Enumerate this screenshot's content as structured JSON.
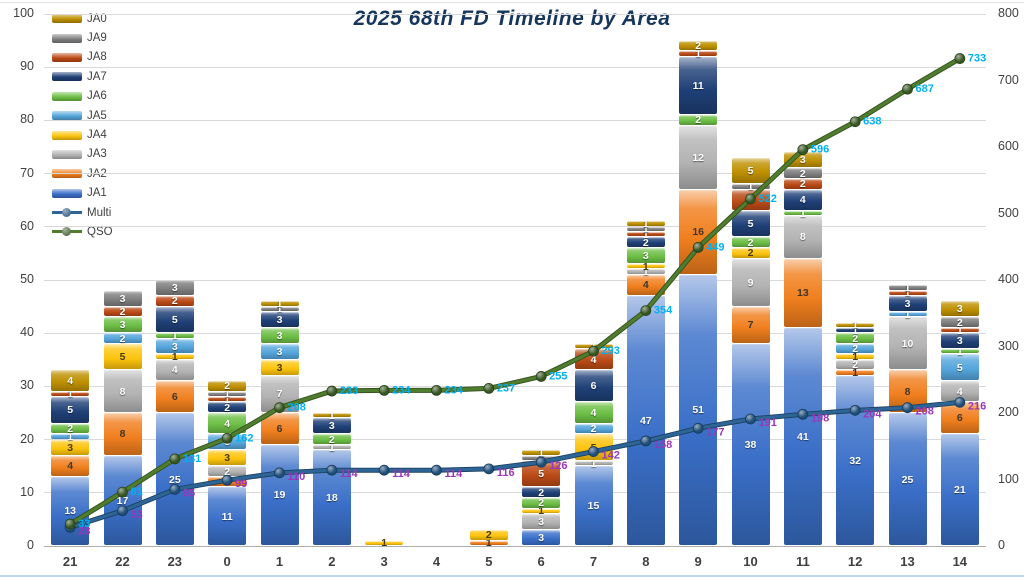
{
  "title": "2025 68th FD Timeline by Area",
  "chart_data": {
    "type": "bar",
    "subtype": "stacked-columns-with-cumulative-lines",
    "categories": [
      "21",
      "22",
      "23",
      "0",
      "1",
      "2",
      "3",
      "4",
      "5",
      "6",
      "7",
      "8",
      "9",
      "10",
      "11",
      "12",
      "13",
      "14"
    ],
    "series": [
      {
        "name": "JA1",
        "color": "#3a6fc8",
        "label_color": "#ffffff",
        "values": [
          13,
          17,
          25,
          11,
          19,
          18,
          0,
          0,
          0,
          3,
          15,
          47,
          51,
          38,
          41,
          32,
          25,
          21
        ]
      },
      {
        "name": "JA2",
        "color": "#f07f1e",
        "label_color": "#40362a",
        "values": [
          4,
          8,
          6,
          2,
          6,
          0,
          0,
          0,
          1,
          0,
          0,
          4,
          16,
          7,
          13,
          1,
          8,
          6
        ]
      },
      {
        "name": "JA3",
        "color": "#b3b3b3",
        "label_color": "#ffffff",
        "values": [
          0,
          8,
          4,
          2,
          7,
          1,
          0,
          0,
          0,
          3,
          1,
          1,
          12,
          9,
          8,
          2,
          10,
          4
        ]
      },
      {
        "name": "JA4",
        "color": "#fdc40d",
        "label_color": "#4a3c0a",
        "values": [
          3,
          5,
          1,
          3,
          3,
          0,
          1,
          0,
          2,
          1,
          5,
          1,
          0,
          2,
          0,
          1,
          0,
          0
        ]
      },
      {
        "name": "JA5",
        "color": "#55a6dc",
        "label_color": "#ffffff",
        "values": [
          1,
          2,
          3,
          3,
          3,
          0,
          0,
          0,
          0,
          0,
          2,
          0,
          0,
          0,
          0,
          2,
          1,
          5
        ]
      },
      {
        "name": "JA6",
        "color": "#6cbe45",
        "label_color": "#ffffff",
        "values": [
          2,
          3,
          1,
          4,
          3,
          2,
          0,
          0,
          0,
          2,
          4,
          3,
          2,
          2,
          1,
          2,
          0,
          1
        ]
      },
      {
        "name": "JA7",
        "color": "#1f4077",
        "label_color": "#ffffff",
        "values": [
          5,
          0,
          5,
          2,
          3,
          3,
          0,
          0,
          0,
          2,
          6,
          2,
          11,
          5,
          4,
          1,
          3,
          3
        ]
      },
      {
        "name": "JA8",
        "color": "#bb4a16",
        "label_color": "#ffffff",
        "values": [
          1,
          2,
          2,
          1,
          0,
          0,
          0,
          0,
          0,
          5,
          4,
          1,
          1,
          4,
          2,
          0,
          1,
          1
        ]
      },
      {
        "name": "JA9",
        "color": "#7f7f7f",
        "label_color": "#ffffff",
        "values": [
          0,
          3,
          3,
          1,
          1,
          0,
          0,
          0,
          0,
          1,
          0,
          1,
          0,
          1,
          2,
          0,
          1,
          2
        ]
      },
      {
        "name": "JA0",
        "color": "#be9000",
        "label_color": "#ffffff",
        "values": [
          4,
          0,
          0,
          2,
          1,
          1,
          0,
          0,
          0,
          1,
          1,
          1,
          2,
          5,
          3,
          1,
          0,
          3
        ]
      }
    ],
    "totals": [
      33,
      48,
      50,
      31,
      46,
      25,
      1,
      0,
      3,
      18,
      38,
      61,
      95,
      73,
      74,
      42,
      49,
      46
    ],
    "lines": [
      {
        "name": "Multi",
        "color": "#2d6596",
        "marker_color": "#1f4e79",
        "label_color": "#9a37b8",
        "axis": "right",
        "values": [
          28,
          53,
          85,
          99,
          110,
          114,
          114,
          114,
          116,
          126,
          142,
          158,
          177,
          191,
          198,
          204,
          208,
          216
        ]
      },
      {
        "name": "QSO",
        "color": "#507c2e",
        "marker_color": "#375623",
        "label_color": "#00b0f0",
        "axis": "right",
        "values": [
          33,
          81,
          131,
          162,
          208,
          233,
          234,
          234,
          237,
          255,
          293,
          354,
          449,
          522,
          596,
          638,
          687,
          733
        ]
      }
    ],
    "left_axis": {
      "min": 0,
      "max": 100,
      "step": 10
    },
    "right_axis": {
      "min": 0,
      "max": 800,
      "step": 100
    },
    "grid": "on",
    "legend_position": "top-left-vertical",
    "xlabel": "",
    "ylabel": ""
  }
}
